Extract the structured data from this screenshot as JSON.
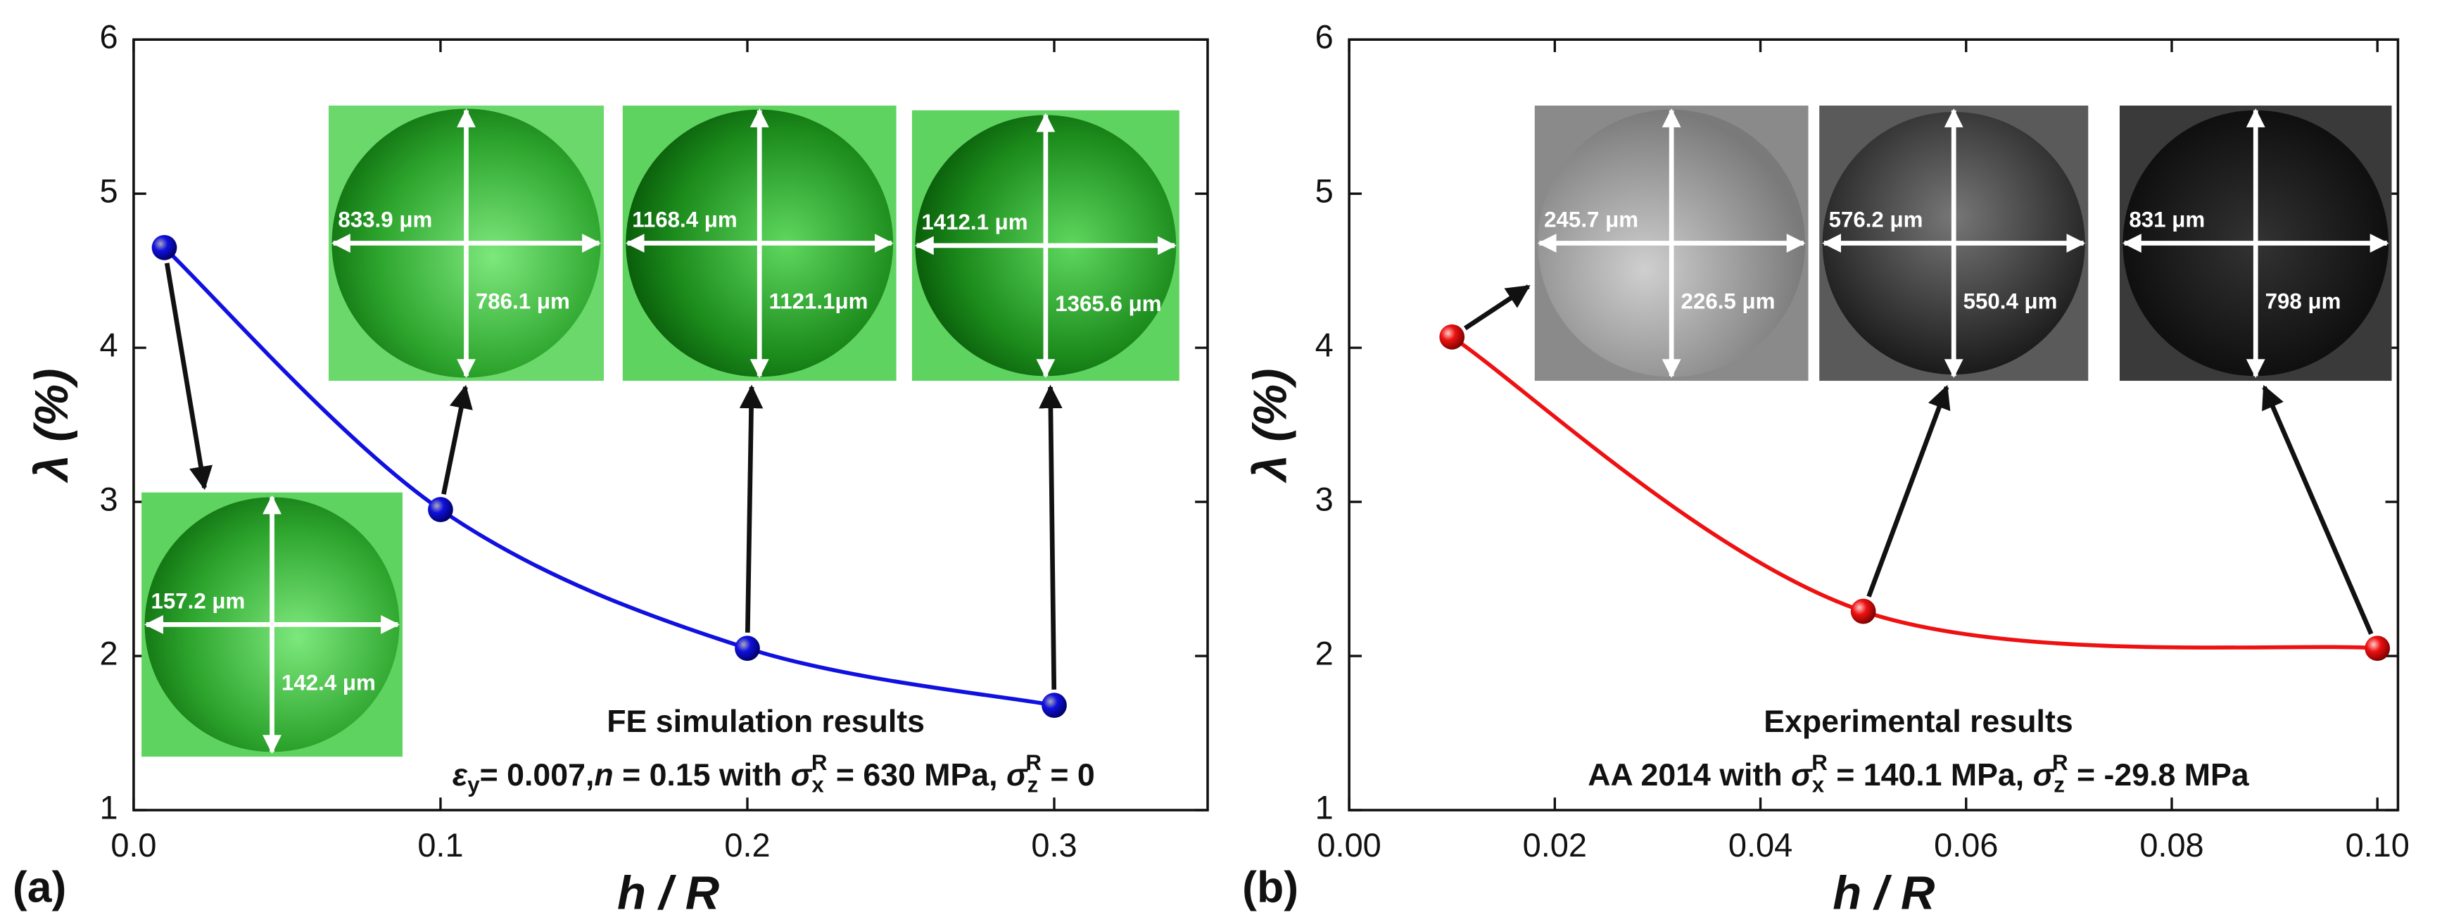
{
  "chart_data": [
    {
      "type": "line",
      "panel_label": "(a)",
      "xlabel": "h / R",
      "ylabel": "λ (%)",
      "x": [
        0.01,
        0.1,
        0.2,
        0.3
      ],
      "series": [
        {
          "color": "#1010e0",
          "values": [
            4.65,
            2.95,
            2.05,
            1.68
          ]
        }
      ],
      "xlim": [
        0,
        0.35
      ],
      "xticks": [
        {
          "value": 0,
          "label": "0.0"
        },
        0.1,
        0.2,
        0.3
      ],
      "ylim": [
        1,
        6
      ],
      "yticks": [
        1,
        2,
        3,
        4,
        5,
        6
      ],
      "annotation_title": "FE simulation results",
      "annotation_formula": [
        "ε",
        "y",
        "= 0.007,",
        "n",
        " = 0.15 with ",
        "σ",
        "x",
        "R",
        " = 630 MPa, ",
        "σ",
        "z",
        "R",
        " = 0"
      ],
      "insets": [
        {
          "width": "157.2 μm",
          "height": "142.4 μm"
        },
        {
          "width": "833.9 μm",
          "height": "786.1 μm"
        },
        {
          "width": "1168.4 μm",
          "height": "1121.1μm"
        },
        {
          "width": "1412.1 μm",
          "height": "1365.6 μm"
        }
      ]
    },
    {
      "type": "line",
      "panel_label": "(b)",
      "xlabel": "h / R",
      "ylabel": "λ (%)",
      "x": [
        0.01,
        0.05,
        0.1
      ],
      "series": [
        {
          "color": "#ee1111",
          "values": [
            4.07,
            2.29,
            2.05
          ]
        }
      ],
      "xlim": [
        0,
        0.102
      ],
      "xticks": [
        {
          "value": 0,
          "label": "0.00"
        },
        {
          "value": 0.02,
          "label": "0.02"
        },
        {
          "value": 0.04,
          "label": "0.04"
        },
        {
          "value": 0.06,
          "label": "0.06"
        },
        {
          "value": 0.08,
          "label": "0.08"
        },
        {
          "value": 0.1,
          "label": "0.10"
        }
      ],
      "ylim": [
        1,
        6
      ],
      "yticks": [
        1,
        2,
        3,
        4,
        5,
        6
      ],
      "annotation_title": "Experimental results",
      "annotation_formula": [
        "AA 2014 with ",
        "σ",
        "x",
        "R",
        " = 140.1 MPa, ",
        "σ",
        "z",
        "R",
        " = -29.8 MPa"
      ],
      "insets": [
        {
          "width": "245.7 μm",
          "height": "226.5 μm"
        },
        {
          "width": "576.2 μm",
          "height": "550.4 μm"
        },
        {
          "width": "831 μm",
          "height": "798 μm"
        }
      ]
    }
  ]
}
